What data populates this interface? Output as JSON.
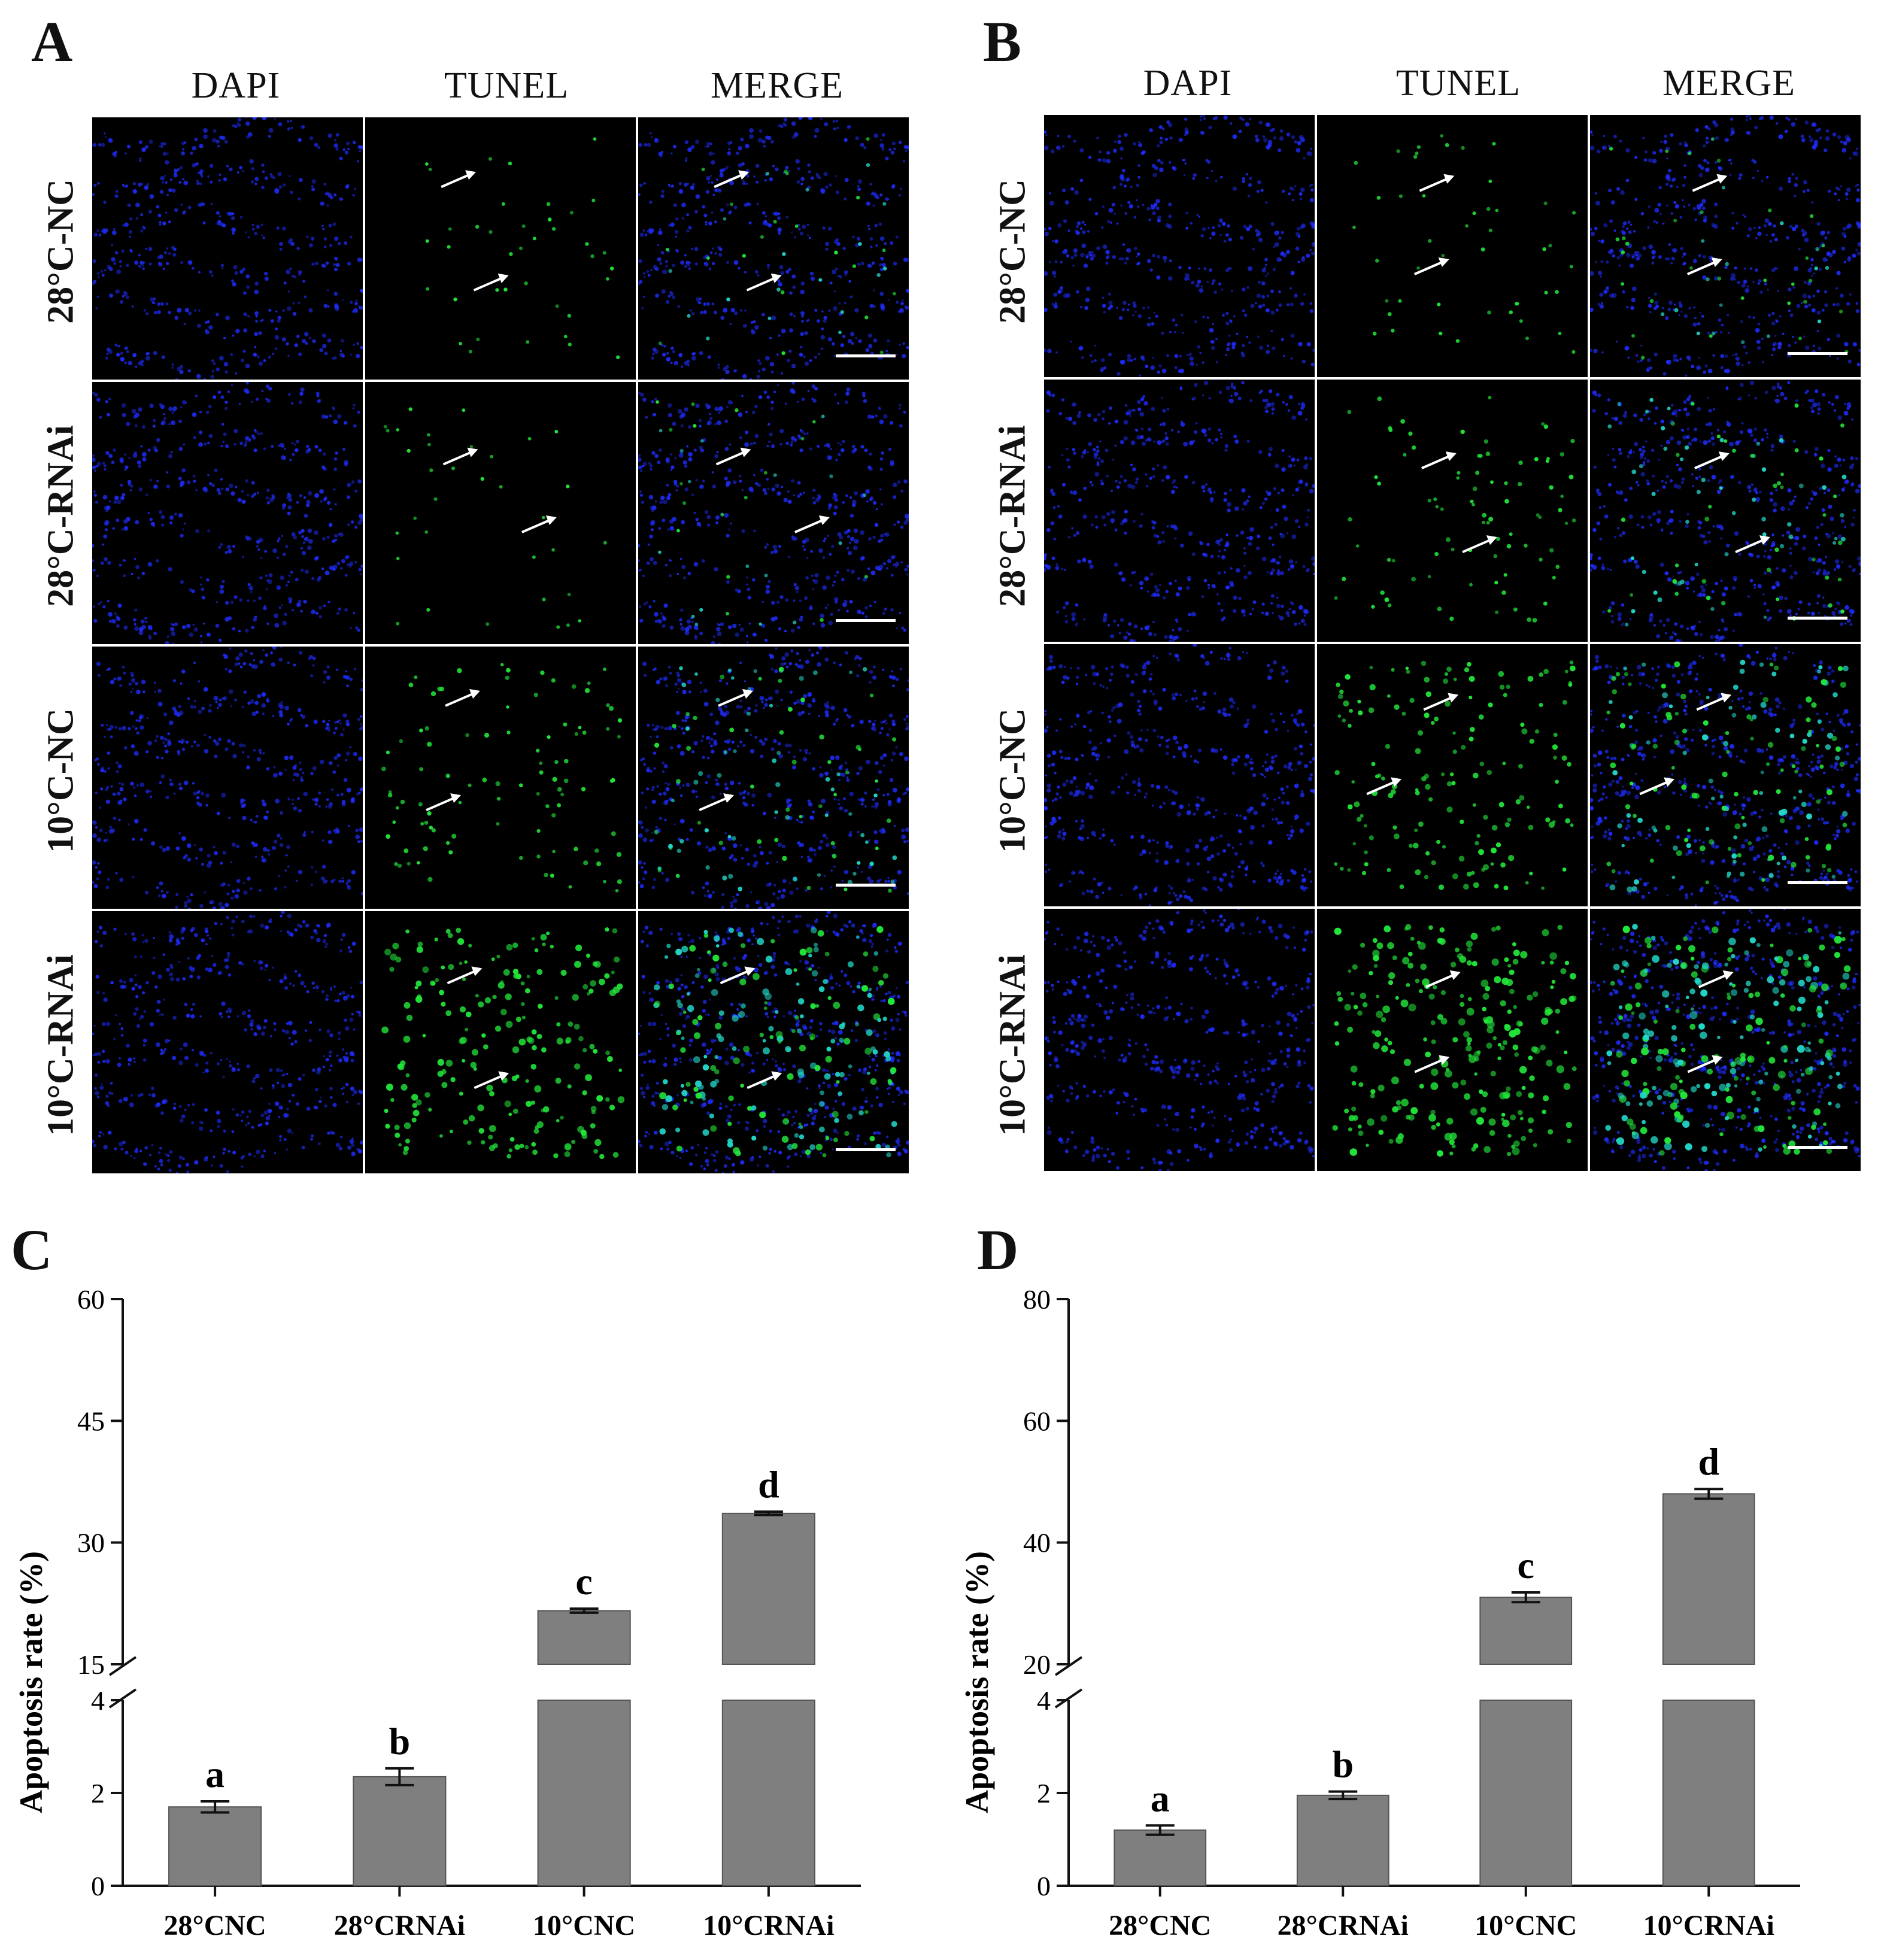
{
  "figure": {
    "panels": {
      "A": {
        "label": "A",
        "column_headers": [
          "DAPI",
          "TUNEL",
          "MERGE"
        ],
        "row_labels": [
          "28°C-NC",
          "28°C-RNAi",
          "10°C-NC",
          "10°C-RNAi"
        ],
        "tunel_density": [
          0.12,
          0.1,
          0.35,
          0.8
        ]
      },
      "B": {
        "label": "B",
        "column_headers": [
          "DAPI",
          "TUNEL",
          "MERGE"
        ],
        "row_labels": [
          "28°C-NC",
          "28°C-RNAi",
          "10°C-NC",
          "10°C-RNAi"
        ],
        "tunel_density": [
          0.15,
          0.3,
          0.6,
          0.95
        ]
      },
      "C": {
        "label": "C"
      },
      "D": {
        "label": "D"
      }
    },
    "colors": {
      "dapi": "#1f2dff",
      "tunel": "#22e63a",
      "merge_overlap": "#22d6c8",
      "bar": "#7f7f7f",
      "axis": "#111111"
    }
  },
  "chart_data": [
    {
      "panel": "C",
      "type": "bar",
      "categories": [
        "28°CNC",
        "28°CRNAi",
        "10°CNC",
        "10°CRNAi"
      ],
      "values": [
        1.7,
        2.35,
        21.6,
        33.6
      ],
      "errors": [
        0.12,
        0.18,
        0.25,
        0.2
      ],
      "significance": [
        "a",
        "b",
        "c",
        "d"
      ],
      "ylabel": "Apoptosis rate (%)",
      "broken_axis": true,
      "lower_ylim": [
        0,
        4
      ],
      "upper_ylim": [
        15,
        60
      ],
      "lower_ticks": [
        "0",
        "2",
        "4"
      ],
      "upper_ticks": [
        "15",
        "30",
        "45",
        "60"
      ]
    },
    {
      "panel": "D",
      "type": "bar",
      "categories": [
        "28°CNC",
        "28°CRNAi",
        "10°CNC",
        "10°CRNAi"
      ],
      "values": [
        1.2,
        1.95,
        31.0,
        48.0
      ],
      "errors": [
        0.1,
        0.08,
        0.8,
        0.8
      ],
      "significance": [
        "a",
        "b",
        "c",
        "d"
      ],
      "ylabel": "Apoptosis rate (%)",
      "broken_axis": true,
      "lower_ylim": [
        0,
        4
      ],
      "upper_ylim": [
        20,
        80
      ],
      "lower_ticks": [
        "0",
        "2",
        "4"
      ],
      "upper_ticks": [
        "20",
        "40",
        "60",
        "80"
      ]
    }
  ]
}
